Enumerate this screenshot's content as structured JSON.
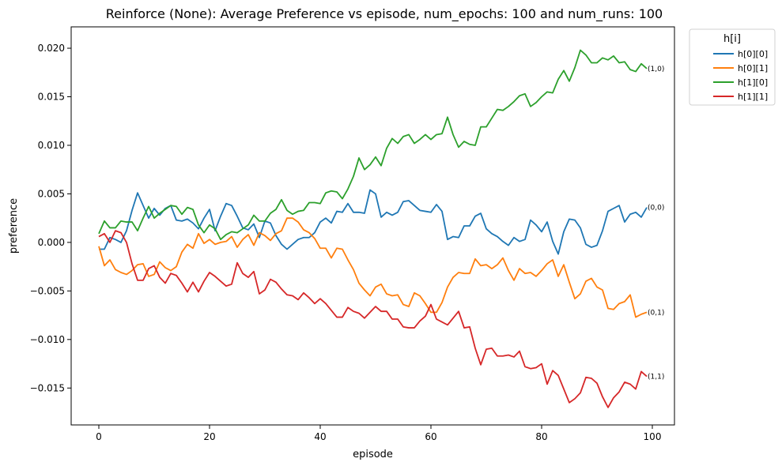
{
  "chart_data": {
    "type": "line",
    "title": "Reinforce (None): Average Preference vs episode, num_epochs: 100 and num_runs: 100",
    "xlabel": "episode",
    "ylabel": "preference",
    "xlim": [
      -5,
      104
    ],
    "ylim": [
      -0.0188,
      0.0222
    ],
    "xticks": [
      0,
      20,
      40,
      60,
      80,
      100
    ],
    "yticks": [
      -0.015,
      -0.01,
      -0.005,
      0.0,
      0.005,
      0.01,
      0.015,
      0.02
    ],
    "ytick_labels": [
      "−0.015",
      "−0.010",
      "−0.005",
      "0.000",
      "0.005",
      "0.010",
      "0.015",
      "0.020"
    ],
    "grid": false,
    "legend": {
      "title": "h[i]",
      "placement": "outside-top-right"
    },
    "series": [
      {
        "name": "h[0][0]",
        "end_label": "(0,0)",
        "color": "#1f77b4",
        "values": [
          -0.0007,
          -0.0007,
          0.0005,
          0.0003,
          0.0,
          0.0012,
          0.0033,
          0.0051,
          0.0038,
          0.0025,
          0.0035,
          0.0028,
          0.0035,
          0.0038,
          0.0023,
          0.0022,
          0.0024,
          0.002,
          0.0014,
          0.0025,
          0.0034,
          0.0012,
          0.0027,
          0.004,
          0.0038,
          0.0027,
          0.0015,
          0.0013,
          0.0019,
          0.0005,
          0.0022,
          0.002,
          0.0007,
          -0.0002,
          -0.0007,
          -0.0002,
          0.0003,
          0.0005,
          0.0005,
          0.001,
          0.0021,
          0.0025,
          0.002,
          0.0032,
          0.0031,
          0.004,
          0.0031,
          0.0031,
          0.003,
          0.0054,
          0.005,
          0.0026,
          0.0031,
          0.0028,
          0.0031,
          0.0042,
          0.0043,
          0.0038,
          0.0033,
          0.0032,
          0.0031,
          0.0039,
          0.0032,
          0.0003,
          0.0006,
          0.0005,
          0.0017,
          0.0017,
          0.0027,
          0.003,
          0.0014,
          0.0009,
          0.0006,
          0.0001,
          -0.0003,
          0.0005,
          0.0001,
          0.0003,
          0.0023,
          0.0018,
          0.0011,
          0.0021,
          0.0001,
          -0.0012,
          0.0011,
          0.0024,
          0.0023,
          0.0015,
          -0.0002,
          -0.0005,
          -0.0003,
          0.0012,
          0.0032,
          0.0035,
          0.0038,
          0.0021,
          0.0029,
          0.0031,
          0.0026,
          0.0036
        ]
      },
      {
        "name": "h[0][1]",
        "end_label": "(0,1)",
        "color": "#ff7f0e",
        "values": [
          -0.0004,
          -0.0024,
          -0.0018,
          -0.0028,
          -0.0031,
          -0.0033,
          -0.0029,
          -0.0023,
          -0.0022,
          -0.0035,
          -0.0033,
          -0.002,
          -0.0026,
          -0.0029,
          -0.0025,
          -0.001,
          -0.0002,
          -0.0006,
          0.0009,
          -0.0001,
          0.0003,
          -0.0002,
          0.0,
          0.0001,
          0.0006,
          -0.0005,
          0.0003,
          0.0008,
          -0.0003,
          0.001,
          0.0007,
          0.0002,
          0.0009,
          0.0012,
          0.0025,
          0.0025,
          0.0021,
          0.0013,
          0.001,
          0.0004,
          -0.0006,
          -0.0006,
          -0.0016,
          -0.0006,
          -0.0007,
          -0.0018,
          -0.0028,
          -0.0042,
          -0.0049,
          -0.0055,
          -0.0046,
          -0.0043,
          -0.0053,
          -0.0055,
          -0.0054,
          -0.0064,
          -0.0066,
          -0.0052,
          -0.0055,
          -0.0063,
          -0.0072,
          -0.0072,
          -0.0062,
          -0.0046,
          -0.0036,
          -0.0031,
          -0.0032,
          -0.0032,
          -0.0017,
          -0.0024,
          -0.0023,
          -0.0027,
          -0.0023,
          -0.0016,
          -0.0029,
          -0.0039,
          -0.0027,
          -0.0032,
          -0.0031,
          -0.0035,
          -0.0029,
          -0.0022,
          -0.0018,
          -0.0035,
          -0.0023,
          -0.0041,
          -0.0058,
          -0.0053,
          -0.004,
          -0.0037,
          -0.0046,
          -0.0049,
          -0.0068,
          -0.0069,
          -0.0063,
          -0.0061,
          -0.0054,
          -0.0077,
          -0.0074,
          -0.0072
        ]
      },
      {
        "name": "h[1][0]",
        "end_label": "(1,0)",
        "color": "#2ca02c",
        "values": [
          0.0009,
          0.0022,
          0.0015,
          0.0015,
          0.0022,
          0.0021,
          0.0021,
          0.0012,
          0.0025,
          0.0037,
          0.0025,
          0.003,
          0.0034,
          0.0038,
          0.0037,
          0.0029,
          0.0036,
          0.0034,
          0.0018,
          0.001,
          0.0018,
          0.0014,
          0.0003,
          0.0008,
          0.0011,
          0.001,
          0.0014,
          0.0018,
          0.0028,
          0.0022,
          0.0022,
          0.003,
          0.0034,
          0.0044,
          0.0033,
          0.0029,
          0.0032,
          0.0033,
          0.0041,
          0.0041,
          0.004,
          0.0051,
          0.0053,
          0.0052,
          0.0045,
          0.0055,
          0.0068,
          0.0087,
          0.0075,
          0.008,
          0.0088,
          0.0079,
          0.0097,
          0.0107,
          0.0102,
          0.0109,
          0.0111,
          0.0102,
          0.0106,
          0.0111,
          0.0106,
          0.0111,
          0.0112,
          0.0129,
          0.0111,
          0.0098,
          0.0104,
          0.0101,
          0.01,
          0.0119,
          0.0119,
          0.0128,
          0.0137,
          0.0136,
          0.014,
          0.0145,
          0.0151,
          0.0153,
          0.014,
          0.0144,
          0.015,
          0.0155,
          0.0154,
          0.0168,
          0.0177,
          0.0166,
          0.018,
          0.0198,
          0.0193,
          0.0185,
          0.0185,
          0.019,
          0.0188,
          0.0192,
          0.0185,
          0.0186,
          0.0178,
          0.0176,
          0.0184,
          0.0179
        ]
      },
      {
        "name": "h[1][1]",
        "end_label": "(1,1)",
        "color": "#d62728",
        "values": [
          0.0006,
          0.0009,
          0.0,
          0.0012,
          0.001,
          0.0,
          -0.0022,
          -0.0039,
          -0.0039,
          -0.0027,
          -0.0024,
          -0.0036,
          -0.0042,
          -0.0032,
          -0.0034,
          -0.0042,
          -0.0051,
          -0.0041,
          -0.0051,
          -0.004,
          -0.0031,
          -0.0035,
          -0.004,
          -0.0045,
          -0.0043,
          -0.0021,
          -0.0032,
          -0.0036,
          -0.003,
          -0.0053,
          -0.0049,
          -0.0038,
          -0.0041,
          -0.0048,
          -0.0054,
          -0.0055,
          -0.0059,
          -0.0052,
          -0.0057,
          -0.0063,
          -0.0058,
          -0.0063,
          -0.007,
          -0.0077,
          -0.0077,
          -0.0067,
          -0.0071,
          -0.0073,
          -0.0078,
          -0.0072,
          -0.0066,
          -0.0071,
          -0.0071,
          -0.0079,
          -0.0079,
          -0.0087,
          -0.0088,
          -0.0088,
          -0.0081,
          -0.0076,
          -0.0064,
          -0.0079,
          -0.0082,
          -0.0085,
          -0.0078,
          -0.0071,
          -0.0088,
          -0.0087,
          -0.0109,
          -0.0126,
          -0.011,
          -0.0109,
          -0.0117,
          -0.0117,
          -0.0116,
          -0.0118,
          -0.0112,
          -0.0128,
          -0.013,
          -0.0129,
          -0.0125,
          -0.0146,
          -0.0132,
          -0.0137,
          -0.0151,
          -0.0165,
          -0.0161,
          -0.0155,
          -0.0139,
          -0.014,
          -0.0145,
          -0.0159,
          -0.017,
          -0.016,
          -0.0154,
          -0.0144,
          -0.0146,
          -0.0151,
          -0.0133,
          -0.0138
        ]
      }
    ]
  }
}
